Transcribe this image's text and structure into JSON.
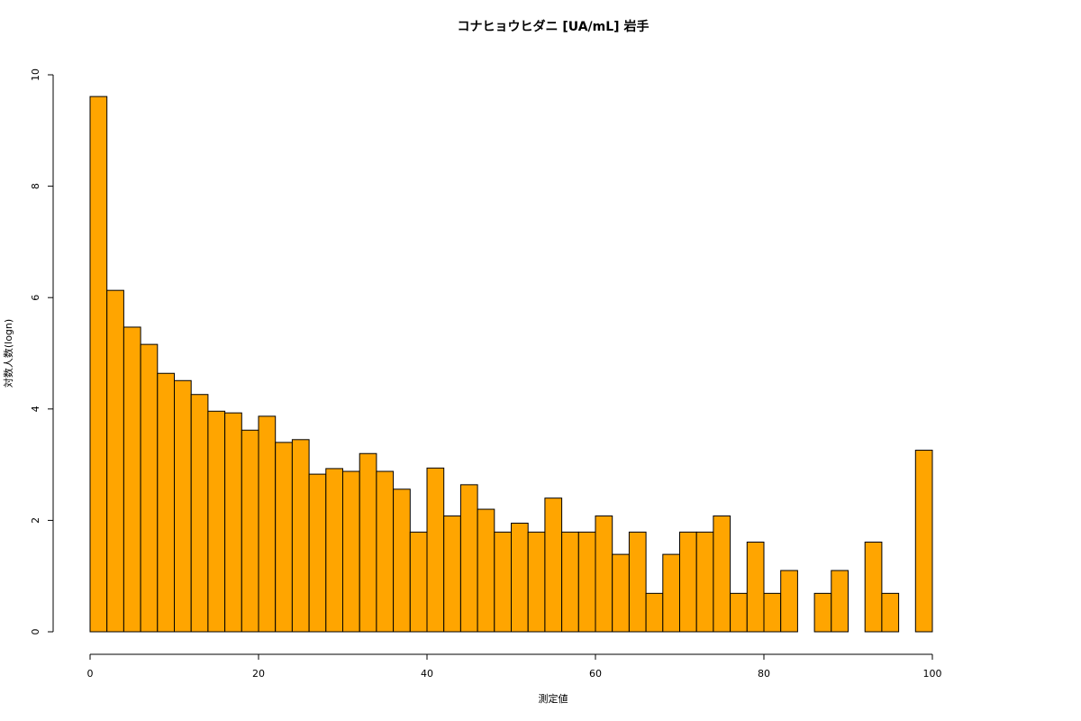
{
  "chart_data": {
    "type": "histogram",
    "title": "コナヒョウヒダニ [UA/mL] 岩手",
    "x_label": "測定値",
    "y_label": "対数人数(logn)",
    "color": "#ffa500",
    "bins": [
      0,
      2,
      4,
      6,
      8,
      10,
      12,
      14,
      16,
      18,
      20,
      22,
      24,
      26,
      28,
      30,
      32,
      34,
      36,
      38,
      40,
      42,
      44,
      46,
      48,
      50,
      52,
      54,
      56,
      58,
      60,
      62,
      64,
      66,
      68,
      70,
      72,
      74,
      76,
      78,
      80,
      82,
      84,
      86,
      88,
      90,
      92,
      94,
      96,
      98,
      100
    ],
    "values": [
      9.61,
      6.13,
      5.47,
      5.16,
      4.64,
      4.51,
      4.26,
      3.96,
      3.93,
      3.62,
      3.87,
      3.4,
      3.45,
      2.83,
      2.93,
      2.88,
      3.2,
      2.88,
      2.56,
      1.79,
      2.94,
      2.08,
      2.64,
      2.2,
      1.79,
      1.95,
      1.79,
      2.4,
      1.79,
      1.79,
      2.08,
      1.39,
      1.79,
      0.69,
      1.39,
      1.79,
      1.79,
      2.08,
      0.69,
      1.61,
      0.69,
      1.1,
      0,
      0.69,
      1.1,
      0,
      1.61,
      0.69,
      0,
      3.26
    ],
    "xlim": [
      0,
      100
    ],
    "xticks": [
      0,
      20,
      40,
      60,
      80,
      100
    ],
    "ylim": [
      0,
      10
    ],
    "yticks": [
      0,
      2,
      4,
      6,
      8,
      10
    ]
  }
}
